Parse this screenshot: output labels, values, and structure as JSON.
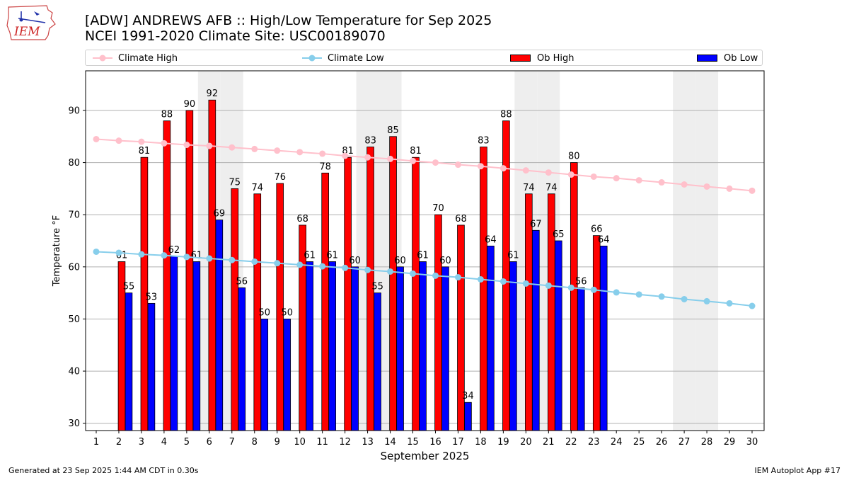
{
  "header": {
    "title_line1": "[ADW] ANDREWS AFB :: High/Low Temperature for Sep 2025",
    "title_line2": "NCEI 1991-2020 Climate Site: USC00189070",
    "logo_text": "IEM"
  },
  "footer": {
    "generated": "Generated at 23 Sep 2025 1:44 AM CDT in 0.30s",
    "app": "IEM Autoplot App #17"
  },
  "colors": {
    "ob_high": "#ff0000",
    "ob_low": "#0000ff",
    "climate_high": "#ffc0cb",
    "climate_low": "#87ceeb",
    "weekend": "#eeeeee",
    "grid": "#b0b0b0"
  },
  "chart_data": {
    "type": "bar",
    "xlabel": "September 2025",
    "ylabel": "Temperature °F",
    "ylim": [
      28.6,
      97.6
    ],
    "yticks": [
      30,
      40,
      50,
      60,
      70,
      80,
      90
    ],
    "grid": "horizontal",
    "legend_position": "top",
    "categories": [
      1,
      2,
      3,
      4,
      5,
      6,
      7,
      8,
      9,
      10,
      11,
      12,
      13,
      14,
      15,
      16,
      17,
      18,
      19,
      20,
      21,
      22,
      23,
      24,
      25,
      26,
      27,
      28,
      29,
      30
    ],
    "weekend_days": [
      6,
      7,
      13,
      14,
      20,
      21,
      27,
      28
    ],
    "series": [
      {
        "name": "Ob High",
        "kind": "bar",
        "color": "#ff0000",
        "values": [
          null,
          61,
          81,
          88,
          90,
          92,
          75,
          74,
          76,
          68,
          78,
          81,
          83,
          85,
          81,
          70,
          68,
          83,
          88,
          74,
          74,
          80,
          66,
          null,
          null,
          null,
          null,
          null,
          null,
          null
        ]
      },
      {
        "name": "Ob Low",
        "kind": "bar",
        "color": "#0000ff",
        "values": [
          null,
          55,
          53,
          62,
          61,
          69,
          56,
          50,
          50,
          61,
          61,
          60,
          55,
          60,
          61,
          60,
          34,
          64,
          61,
          67,
          65,
          56,
          64,
          null,
          null,
          null,
          null,
          null,
          null,
          null
        ]
      },
      {
        "name": "Climate High",
        "kind": "line",
        "color": "#ffc0cb",
        "values": [
          84.5,
          84.2,
          84.0,
          83.7,
          83.4,
          83.2,
          82.9,
          82.6,
          82.3,
          82.0,
          81.7,
          81.3,
          81.0,
          80.7,
          80.3,
          80.0,
          79.6,
          79.3,
          78.9,
          78.5,
          78.1,
          77.7,
          77.3,
          77.0,
          76.6,
          76.2,
          75.8,
          75.4,
          75.0,
          74.6
        ]
      },
      {
        "name": "Climate Low",
        "kind": "line",
        "color": "#87ceeb",
        "values": [
          62.9,
          62.7,
          62.4,
          62.2,
          61.9,
          61.6,
          61.3,
          61.0,
          60.7,
          60.4,
          60.1,
          59.8,
          59.4,
          59.1,
          58.7,
          58.3,
          58.0,
          57.6,
          57.2,
          56.8,
          56.4,
          56.0,
          55.6,
          55.1,
          54.7,
          54.3,
          53.8,
          53.4,
          53.0,
          52.5
        ]
      }
    ]
  }
}
